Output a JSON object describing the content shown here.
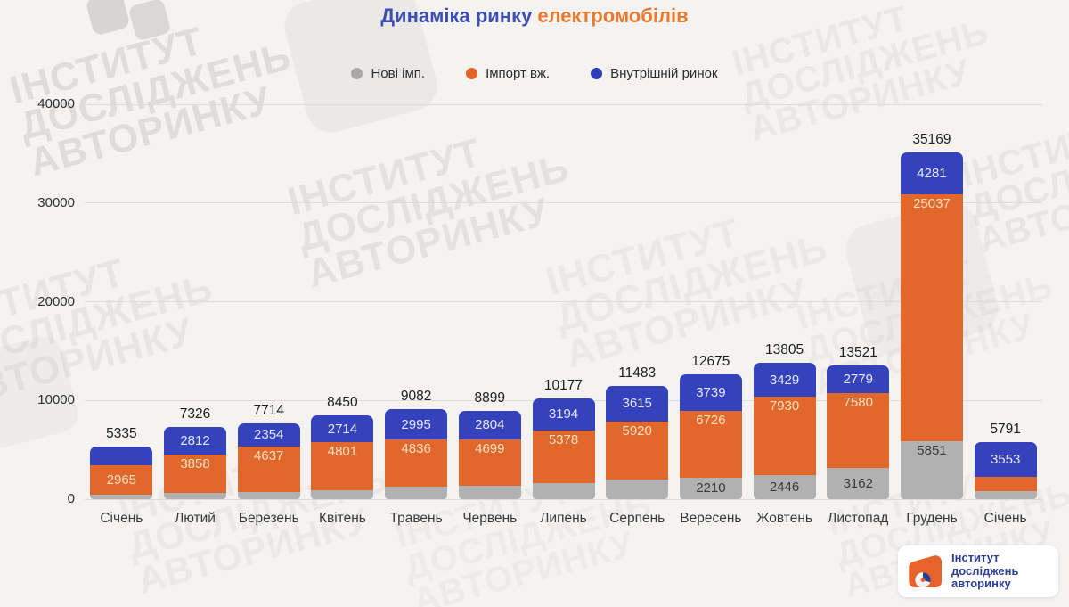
{
  "title": {
    "part1": "Динаміка ринку",
    "part2": "електромобілів"
  },
  "legend": [
    {
      "label": "Нові імп.",
      "color": "#a9a9a9"
    },
    {
      "label": "Імпорт вж.",
      "color": "#e2622b"
    },
    {
      "label": "Внутрішній ринок",
      "color": "#2e3cb8"
    }
  ],
  "watermark": {
    "line1": "ІНСТИТУТ",
    "line2": "ДОСЛІДЖЕНЬ",
    "line3": "АВТОРИНКУ"
  },
  "logo": {
    "line1": "Інститут",
    "line2": "досліджень",
    "line3": "авторинку"
  },
  "chart_data": {
    "type": "bar",
    "stacked": true,
    "title": "Динаміка ринку електромобілів",
    "categories": [
      "Січень",
      "Лютий",
      "Березень",
      "Квітень",
      "Травень",
      "Червень",
      "Липень",
      "Серпень",
      "Вересень",
      "Жовтень",
      "Листопад",
      "Грудень",
      "Січень"
    ],
    "totals": [
      5335,
      7326,
      7714,
      8450,
      9082,
      8899,
      10177,
      11483,
      12675,
      13805,
      13521,
      35169,
      5791
    ],
    "series": [
      {
        "name": "Нові імп.",
        "color": "#b1b1b1",
        "label_color": "#3b3b3b",
        "values": [
          470,
          656,
          723,
          935,
          1251,
          1396,
          1605,
          1948,
          2210,
          2446,
          3162,
          5851,
          840
        ],
        "labels": [
          null,
          null,
          null,
          null,
          null,
          null,
          null,
          null,
          "2210",
          "2446",
          "3162",
          "5851",
          null
        ]
      },
      {
        "name": "Імпорт вж.",
        "color": "#e2672b",
        "label_color": "#f8dfc2",
        "values": [
          2965,
          3858,
          4637,
          4801,
          4836,
          4699,
          5378,
          5920,
          6726,
          7930,
          7580,
          25037,
          1398
        ],
        "labels": [
          "2965",
          "3858",
          "4637",
          "4801",
          "4836",
          "4699",
          "5378",
          "5920",
          "6726",
          "7930",
          "7580",
          "25037",
          null
        ]
      },
      {
        "name": "Внутрішній ринок",
        "color": "#3542bd",
        "label_color": "#e4e7f7",
        "values": [
          1900,
          2812,
          2354,
          2714,
          2995,
          2804,
          3194,
          3615,
          3739,
          3429,
          2779,
          4281,
          3553
        ],
        "labels": [
          null,
          "2812",
          "2354",
          "2714",
          "2995",
          "2804",
          "3194",
          "3615",
          "3739",
          "3429",
          "2779",
          "4281",
          "3553"
        ]
      }
    ],
    "yticks": [
      0,
      10000,
      20000,
      30000,
      40000
    ],
    "ylim": [
      0,
      40000
    ],
    "xlabel": "",
    "ylabel": "",
    "grid": true,
    "legend_position": "top"
  }
}
